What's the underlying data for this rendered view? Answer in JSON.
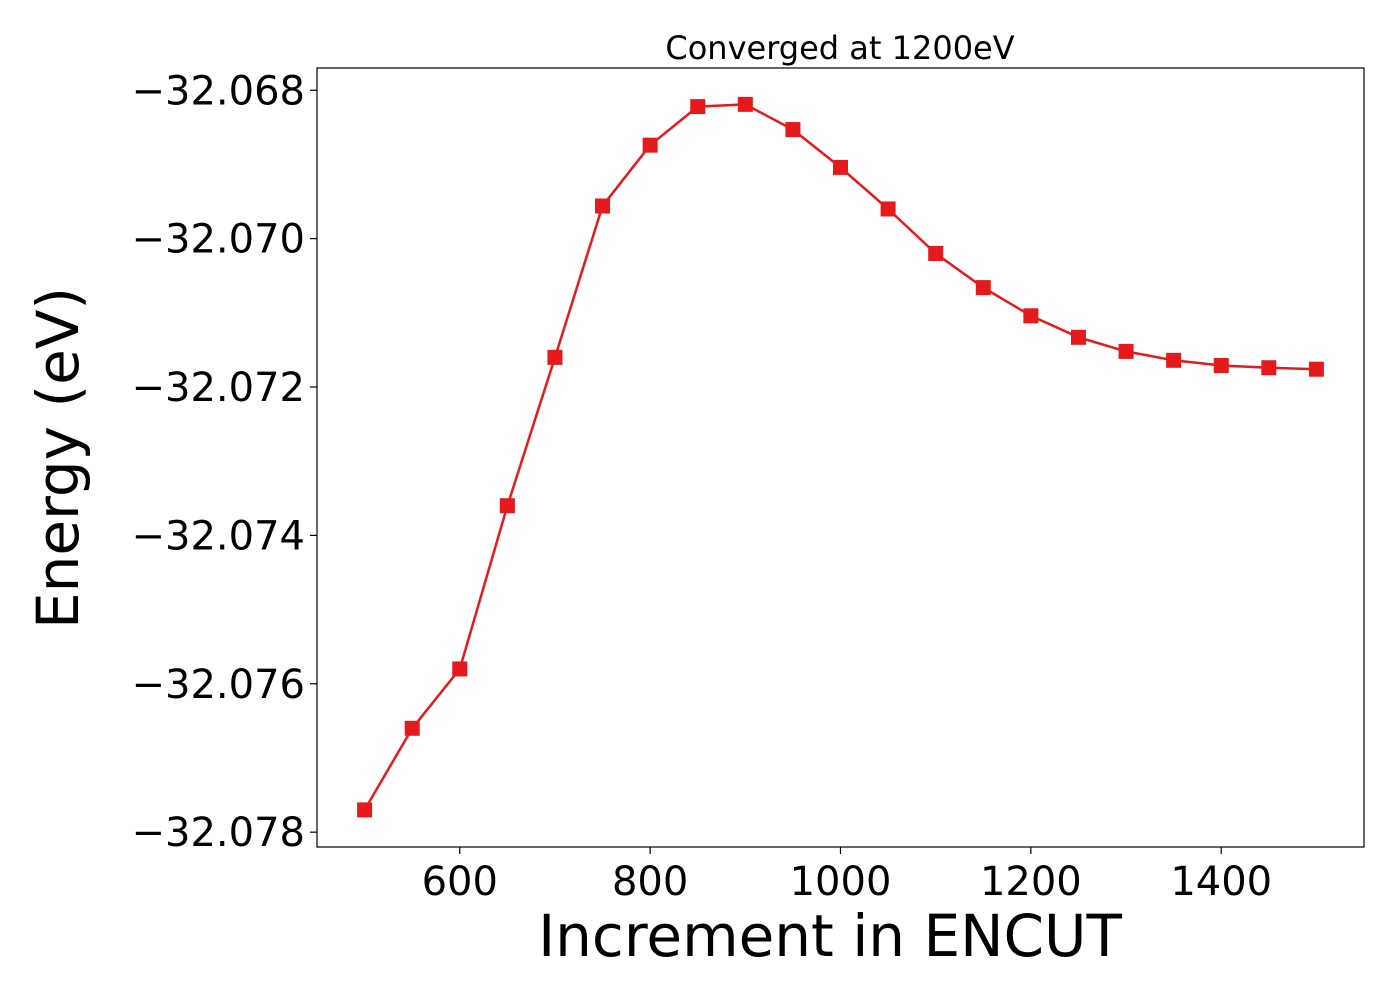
{
  "chart_data": {
    "type": "line",
    "title": "Converged at 1200eV",
    "xlabel": "Increment in ENCUT",
    "ylabel": "Energy (eV)",
    "xlim": [
      450,
      1550
    ],
    "ylim": [
      -32.0782,
      -32.0677
    ],
    "x_ticks": [
      600,
      800,
      1000,
      1200,
      1400
    ],
    "x_tick_labels": [
      "600",
      "800",
      "1000",
      "1200",
      "1400"
    ],
    "y_ticks": [
      -32.068,
      -32.07,
      -32.072,
      -32.074,
      -32.076,
      -32.078
    ],
    "y_tick_labels": [
      "−32.068",
      "−32.070",
      "−32.072",
      "−32.074",
      "−32.076",
      "−32.078"
    ],
    "grid": false,
    "series": [
      {
        "color": "#e41a1c",
        "marker": "square",
        "x": [
          500,
          550,
          600,
          650,
          700,
          750,
          800,
          850,
          900,
          950,
          1000,
          1050,
          1100,
          1150,
          1200,
          1250,
          1300,
          1350,
          1400,
          1450,
          1500
        ],
        "y": [
          -32.0777,
          -32.0766,
          -32.0758,
          -32.0736,
          -32.0716,
          -32.06956,
          -32.06874,
          -32.06822,
          -32.06819,
          -32.06853,
          -32.06904,
          -32.0696,
          -32.0702,
          -32.07066,
          -32.07104,
          -32.07133,
          -32.07152,
          -32.07164,
          -32.07171,
          -32.07174,
          -32.07176
        ]
      }
    ]
  }
}
